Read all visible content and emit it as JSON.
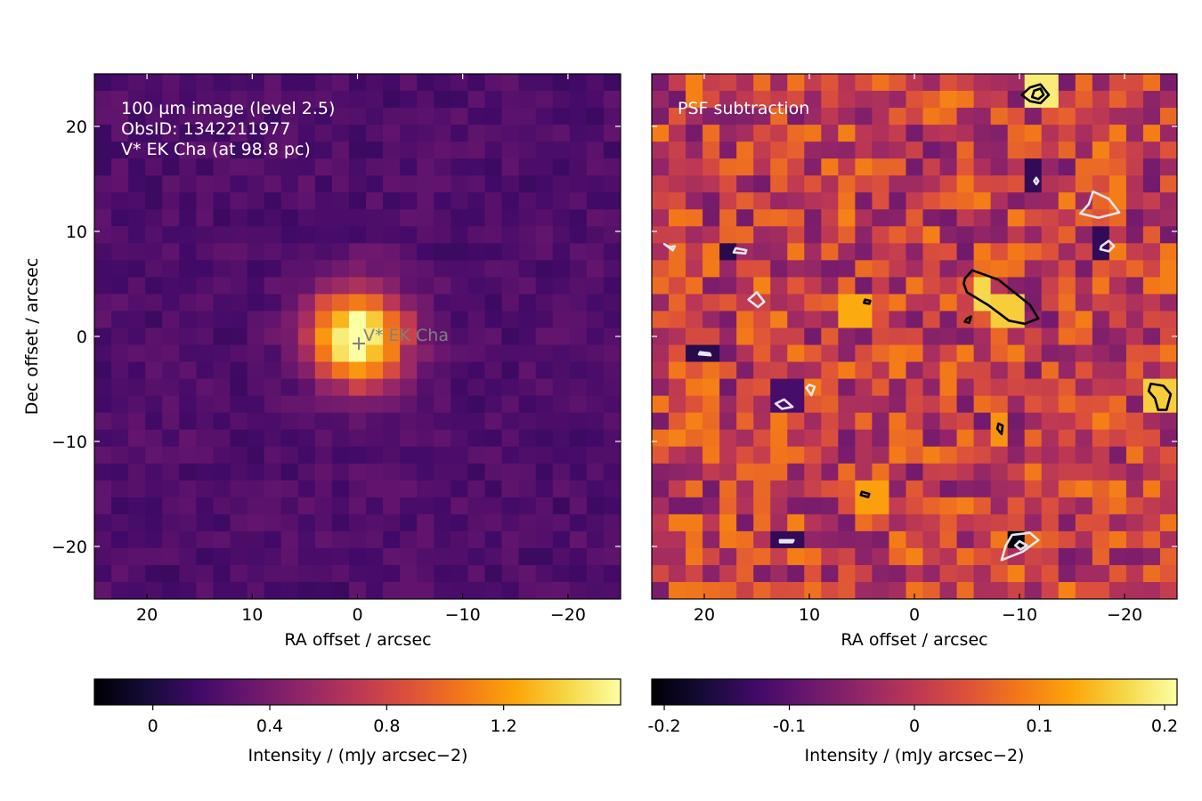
{
  "chart_data": [
    {
      "type": "heatmap",
      "panel": "left",
      "annotation_lines": [
        "100 µm image (level 2.5)",
        "ObsID: 1342211977",
        "V* EK Cha (at 98.8 pc)"
      ],
      "source_marker_label": "V* EK Cha",
      "xlabel": "RA offset / arcsec",
      "ylabel": "Dec offset / arcsec",
      "xlim": [
        25,
        -25
      ],
      "ylim": [
        -25,
        25
      ],
      "x_ticks": [
        20,
        10,
        0,
        -10,
        -20
      ],
      "y_ticks": [
        20,
        10,
        0,
        -10,
        -20
      ],
      "x_tick_labels": [
        "20",
        "10",
        "0",
        "−10",
        "−20"
      ],
      "y_tick_labels": [
        "20",
        "10",
        "0",
        "−10",
        "−20"
      ],
      "grid": false,
      "colormap": "inferno",
      "source_peak": {
        "ra": 0,
        "dec": 0,
        "peak": 1.5,
        "sigma": 3.2
      },
      "background_level": 0.22,
      "colorbar": {
        "label": "Intensity / (mJy arcsec−2)",
        "range": [
          -0.2,
          1.6
        ],
        "ticks": [
          0,
          0.4,
          0.8,
          1.2
        ],
        "tick_labels": [
          "0",
          "0.4",
          "0.8",
          "1.2"
        ]
      }
    },
    {
      "type": "heatmap",
      "panel": "right",
      "annotation_lines": [
        "PSF subtraction"
      ],
      "xlabel": "RA offset / arcsec",
      "xlim": [
        25,
        -25
      ],
      "ylim": [
        -25,
        25
      ],
      "x_ticks": [
        20,
        10,
        0,
        -10,
        -20
      ],
      "x_tick_labels": [
        "20",
        "10",
        "0",
        "−10",
        "−20"
      ],
      "grid": false,
      "colormap": "inferno",
      "residual_hotspots": [
        {
          "ra": -11.5,
          "dec": 23.0,
          "value": 0.19
        },
        {
          "ra": -6.5,
          "dec": 4.5,
          "value": 0.17
        },
        {
          "ra": -9.0,
          "dec": 2.0,
          "value": 0.16
        },
        {
          "ra": -23.5,
          "dec": -5.5,
          "value": 0.16
        },
        {
          "ra": -8.0,
          "dec": -9.0,
          "value": 0.11
        },
        {
          "ra": 5.0,
          "dec": 3.0,
          "value": 0.13
        },
        {
          "ra": 4.5,
          "dec": -15.5,
          "value": 0.12
        }
      ],
      "residual_holes": [
        {
          "ra": -10.0,
          "dec": -19.5,
          "value": -0.2
        },
        {
          "ra": -11.5,
          "dec": 15.0,
          "value": -0.14
        },
        {
          "ra": 17.5,
          "dec": 8.0,
          "value": -0.15
        },
        {
          "ra": 20.0,
          "dec": -1.5,
          "value": -0.15
        },
        {
          "ra": 12.5,
          "dec": -19.5,
          "value": -0.14
        },
        {
          "ra": 12.0,
          "dec": -5.5,
          "value": -0.12
        },
        {
          "ra": -18.0,
          "dec": 8.5,
          "value": -0.14
        }
      ],
      "contours_positive": [
        {
          "ra": [
            -11.0,
            -12.0,
            -12.8,
            -12.0,
            -11.0,
            -10.2
          ],
          "dec": [
            23.7,
            24.0,
            23.0,
            22.2,
            22.4,
            23.0
          ]
        },
        {
          "ra": [
            -11.4,
            -12.0,
            -12.3,
            -11.8,
            -11.2
          ],
          "dec": [
            23.4,
            23.6,
            23.0,
            22.6,
            22.8
          ]
        },
        {
          "ra": [
            -4.8,
            -5.5,
            -8.0,
            -11.0,
            -11.8,
            -10.5,
            -9.0,
            -7.0,
            -5.0,
            -4.7
          ],
          "dec": [
            5.5,
            6.3,
            5.4,
            3.0,
            1.7,
            1.2,
            1.5,
            3.0,
            4.2,
            5.0
          ]
        },
        {
          "ra": [
            -22.5,
            -23.7,
            -24.4,
            -24.0,
            -23.2,
            -22.9,
            -22.3
          ],
          "dec": [
            -4.5,
            -4.7,
            -5.5,
            -7.0,
            -7.0,
            -5.9,
            -5.2
          ]
        },
        {
          "ra": [
            -8.0,
            -8.4,
            -8.3,
            -7.9
          ],
          "dec": [
            -8.3,
            -8.5,
            -9.3,
            -8.8
          ]
        },
        {
          "ra": [
            -5.0,
            -5.4,
            -5.2,
            -4.8
          ],
          "dec": [
            1.7,
            1.9,
            1.3,
            1.4
          ]
        },
        {
          "ra": [
            4.7,
            4.2,
            4.3,
            4.8
          ],
          "dec": [
            3.5,
            3.4,
            3.1,
            3.2
          ]
        },
        {
          "ra": [
            5.0,
            4.3,
            4.4,
            5.1
          ],
          "dec": [
            -14.8,
            -15.0,
            -15.3,
            -15.1
          ]
        }
      ],
      "contours_negative": [
        {
          "ra": [
            -17.0,
            -18.5,
            -19.5,
            -17.5,
            -15.8,
            -16.6
          ],
          "dec": [
            13.8,
            13.1,
            11.8,
            11.3,
            11.7,
            12.6
          ]
        },
        {
          "ra": [
            -17.8,
            -18.5,
            -19.0,
            -18.5,
            -17.7
          ],
          "dec": [
            8.6,
            9.1,
            8.6,
            8.1,
            8.3
          ]
        },
        {
          "ra": [
            23.3,
            23.8,
            23.0,
            22.8
          ],
          "dec": [
            8.5,
            8.8,
            8.2,
            8.6
          ]
        },
        {
          "ra": [
            17.0,
            16.0,
            16.1,
            17.2
          ],
          "dec": [
            8.4,
            8.2,
            7.9,
            8.0
          ]
        },
        {
          "ra": [
            15.0,
            15.8,
            14.9,
            14.3
          ],
          "dec": [
            4.2,
            3.5,
            2.8,
            3.3
          ]
        },
        {
          "ra": [
            20.4,
            19.5,
            19.4,
            20.5
          ],
          "dec": [
            -1.5,
            -1.6,
            -1.8,
            -1.7
          ]
        },
        {
          "ra": [
            10.0,
            9.5,
            9.8,
            10.3
          ],
          "dec": [
            -4.6,
            -4.8,
            -5.6,
            -4.9
          ]
        },
        {
          "ra": [
            13.2,
            12.4,
            11.6,
            12.6
          ],
          "dec": [
            -6.4,
            -6.0,
            -6.7,
            -6.9
          ]
        },
        {
          "ra": [
            -9.3,
            -11.0,
            -11.8,
            -10.3,
            -8.3,
            -8.7
          ],
          "dec": [
            -18.9,
            -18.7,
            -19.4,
            -20.5,
            -21.3,
            -19.9
          ]
        },
        {
          "ra": [
            -10.0,
            -10.7,
            -10.1,
            -9.6
          ],
          "dec": [
            -19.5,
            -19.9,
            -20.3,
            -19.9
          ]
        },
        {
          "ra": [
            12.8,
            11.5,
            11.6,
            12.8
          ],
          "dec": [
            -19.4,
            -19.4,
            -19.6,
            -19.6
          ]
        },
        {
          "ra": [
            -11.6,
            -11.8,
            -11.6,
            -11.4
          ],
          "dec": [
            15.1,
            14.8,
            14.5,
            14.8
          ]
        }
      ],
      "colorbar": {
        "label": "Intensity / (mJy arcsec−2)",
        "range": [
          -0.21,
          0.21
        ],
        "ticks": [
          -0.2,
          -0.1,
          0,
          0.1,
          0.2
        ],
        "tick_labels": [
          "-0.2",
          "-0.1",
          "0",
          "0.1",
          "0.2"
        ]
      }
    }
  ]
}
